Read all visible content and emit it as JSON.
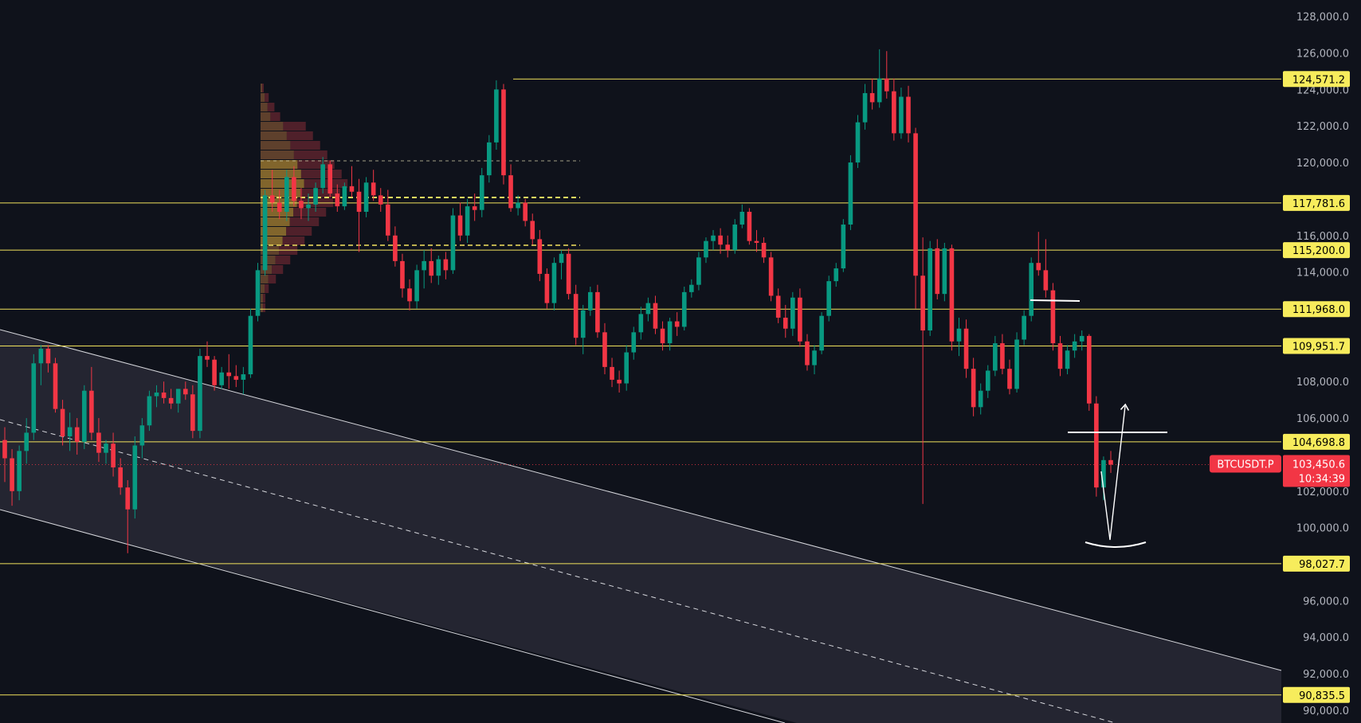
{
  "chart_data": {
    "type": "candlestick",
    "symbol": "BTCUSDT.P",
    "y_axis": {
      "min": 89300,
      "max": 128900,
      "ticks": [
        "90,000.0",
        "92,000.0",
        "94,000.0",
        "96,000.0",
        "100,000.0",
        "102,000.0",
        "106,000.0",
        "108,000.0",
        "114,000.0",
        "116,000.0",
        "120,000.0",
        "122,000.0",
        "124,000.0",
        "126,000.0",
        "128,000.0"
      ]
    },
    "levels": [
      {
        "value": 124571.2,
        "label": "124,571.2"
      },
      {
        "value": 117781.6,
        "label": "117,781.6"
      },
      {
        "value": 115200.0,
        "label": "115,200.0"
      },
      {
        "value": 111968.0,
        "label": "111,968.0"
      },
      {
        "value": 109951.7,
        "label": "109,951.7"
      },
      {
        "value": 104698.8,
        "label": "104,698.8"
      },
      {
        "value": 98027.7,
        "label": "98,027.7"
      },
      {
        "value": 90835.5,
        "label": "90,835.5"
      }
    ],
    "current_price": {
      "value": 103450.6,
      "label": "103,450.6",
      "countdown": "10:34:39"
    },
    "candles": [
      [
        104800,
        105500,
        102500,
        103800
      ],
      [
        103800,
        104300,
        101200,
        102000
      ],
      [
        102000,
        104500,
        101500,
        104200
      ],
      [
        104200,
        106000,
        103500,
        105200
      ],
      [
        105200,
        109500,
        104800,
        109000
      ],
      [
        109000,
        110000,
        107800,
        109800
      ],
      [
        109800,
        110000,
        108500,
        109000
      ],
      [
        109000,
        109300,
        106300,
        106500
      ],
      [
        106500,
        107000,
        104500,
        105000
      ],
      [
        105000,
        106300,
        104200,
        105500
      ],
      [
        105500,
        106000,
        104000,
        104700
      ],
      [
        104700,
        107800,
        104300,
        107500
      ],
      [
        107500,
        108800,
        104800,
        105200
      ],
      [
        105200,
        106000,
        103600,
        104100
      ],
      [
        104100,
        104800,
        103500,
        104600
      ],
      [
        104600,
        105200,
        102800,
        103300
      ],
      [
        103300,
        103800,
        101800,
        102200
      ],
      [
        102200,
        102600,
        98600,
        101000
      ],
      [
        101000,
        105000,
        100500,
        104500
      ],
      [
        104500,
        106000,
        103800,
        105600
      ],
      [
        105600,
        107500,
        105300,
        107200
      ],
      [
        107200,
        107800,
        106600,
        107400
      ],
      [
        107400,
        108000,
        106800,
        107100
      ],
      [
        107100,
        107600,
        106500,
        106800
      ],
      [
        106800,
        107600,
        106300,
        107600
      ],
      [
        107600,
        108000,
        107000,
        107300
      ],
      [
        107300,
        107800,
        104900,
        105300
      ],
      [
        105300,
        109800,
        104900,
        109400
      ],
      [
        109400,
        110200,
        108800,
        109200
      ],
      [
        109200,
        109400,
        107500,
        107800
      ],
      [
        107800,
        108800,
        107600,
        108500
      ],
      [
        108500,
        109500,
        107600,
        108300
      ],
      [
        108300,
        108900,
        107700,
        108100
      ],
      [
        108100,
        108800,
        107300,
        108400
      ],
      [
        108400,
        112000,
        108200,
        111600
      ],
      [
        111600,
        114500,
        111300,
        114100
      ],
      [
        114100,
        118500,
        113800,
        118200
      ],
      [
        118200,
        119600,
        117300,
        117800
      ],
      [
        117800,
        118500,
        116900,
        117300
      ],
      [
        117300,
        119600,
        116800,
        119200
      ],
      [
        119200,
        119800,
        117600,
        117900
      ],
      [
        117900,
        118600,
        116900,
        117500
      ],
      [
        117500,
        118300,
        116800,
        117700
      ],
      [
        117700,
        118900,
        117300,
        118600
      ],
      [
        118600,
        120300,
        118300,
        119900
      ],
      [
        119900,
        120100,
        118100,
        118300
      ],
      [
        118300,
        118800,
        117300,
        117600
      ],
      [
        117600,
        118900,
        117400,
        118700
      ],
      [
        118700,
        119800,
        118100,
        118400
      ],
      [
        118400,
        119100,
        115100,
        117300
      ],
      [
        117300,
        119200,
        117000,
        118900
      ],
      [
        118900,
        119600,
        117900,
        118200
      ],
      [
        118200,
        118600,
        117300,
        117700
      ],
      [
        117700,
        118500,
        115700,
        116000
      ],
      [
        116000,
        116500,
        114300,
        114600
      ],
      [
        114600,
        115000,
        112600,
        113100
      ],
      [
        113100,
        113600,
        111900,
        112400
      ],
      [
        112400,
        114400,
        112000,
        114100
      ],
      [
        114100,
        115200,
        113100,
        114600
      ],
      [
        114600,
        115300,
        113400,
        113800
      ],
      [
        113800,
        114900,
        113300,
        114700
      ],
      [
        114700,
        115100,
        113600,
        114100
      ],
      [
        114100,
        117500,
        113900,
        117100
      ],
      [
        117100,
        117800,
        115700,
        116000
      ],
      [
        116000,
        118000,
        115600,
        117600
      ],
      [
        117600,
        118300,
        116800,
        117400
      ],
      [
        117400,
        119700,
        117000,
        119300
      ],
      [
        119300,
        121500,
        118900,
        121100
      ],
      [
        121100,
        124500,
        120700,
        124000
      ],
      [
        124000,
        124300,
        118800,
        119300
      ],
      [
        119300,
        119900,
        117300,
        117500
      ],
      [
        117500,
        118200,
        117100,
        117800
      ],
      [
        117800,
        118000,
        116500,
        116800
      ],
      [
        116800,
        117200,
        115500,
        115800
      ],
      [
        115800,
        116300,
        113500,
        113900
      ],
      [
        113900,
        114200,
        112000,
        112300
      ],
      [
        112300,
        114800,
        111900,
        114500
      ],
      [
        114500,
        115200,
        113600,
        115000
      ],
      [
        115000,
        115300,
        112500,
        112800
      ],
      [
        112800,
        113300,
        110000,
        110400
      ],
      [
        110400,
        112200,
        109500,
        111900
      ],
      [
        111900,
        113200,
        111600,
        112900
      ],
      [
        112900,
        113300,
        110400,
        110700
      ],
      [
        110700,
        111200,
        108400,
        108800
      ],
      [
        108800,
        109300,
        107700,
        108100
      ],
      [
        108100,
        108600,
        107400,
        107900
      ],
      [
        107900,
        110000,
        107500,
        109600
      ],
      [
        109600,
        111000,
        109200,
        110700
      ],
      [
        110700,
        112100,
        110300,
        111700
      ],
      [
        111700,
        112600,
        111300,
        112300
      ],
      [
        112300,
        112700,
        110600,
        110900
      ],
      [
        110900,
        111300,
        109700,
        110100
      ],
      [
        110100,
        111500,
        109700,
        111300
      ],
      [
        111300,
        111800,
        110500,
        111000
      ],
      [
        111000,
        113200,
        110800,
        112900
      ],
      [
        112900,
        113600,
        112600,
        113300
      ],
      [
        113300,
        115100,
        113000,
        114800
      ],
      [
        114800,
        115900,
        114500,
        115700
      ],
      [
        115700,
        116300,
        115200,
        116000
      ],
      [
        116000,
        116400,
        115000,
        115500
      ],
      [
        115500,
        116000,
        114800,
        115200
      ],
      [
        115200,
        116900,
        115000,
        116600
      ],
      [
        116600,
        117700,
        116400,
        117300
      ],
      [
        117300,
        117500,
        115500,
        115700
      ],
      [
        115700,
        116300,
        115100,
        115600
      ],
      [
        115600,
        115900,
        114500,
        114800
      ],
      [
        114800,
        115100,
        112400,
        112700
      ],
      [
        112700,
        113100,
        111200,
        111500
      ],
      [
        111500,
        112200,
        110400,
        110900
      ],
      [
        110900,
        112900,
        110500,
        112600
      ],
      [
        112600,
        113100,
        109900,
        110200
      ],
      [
        110200,
        110600,
        108600,
        108900
      ],
      [
        108900,
        110000,
        108400,
        109700
      ],
      [
        109700,
        111800,
        109500,
        111600
      ],
      [
        111600,
        113800,
        111300,
        113500
      ],
      [
        113500,
        114500,
        113200,
        114200
      ],
      [
        114200,
        116900,
        114000,
        116600
      ],
      [
        116600,
        120400,
        116300,
        120000
      ],
      [
        120000,
        122600,
        119700,
        122200
      ],
      [
        122200,
        124300,
        121800,
        123800
      ],
      [
        123800,
        124600,
        122900,
        123300
      ],
      [
        123300,
        126200,
        123000,
        124600
      ],
      [
        124600,
        126100,
        123500,
        123900
      ],
      [
        123900,
        124600,
        121200,
        121600
      ],
      [
        121600,
        124100,
        121300,
        123600
      ],
      [
        123600,
        124200,
        121100,
        121600
      ],
      [
        121600,
        121900,
        112000,
        113800
      ],
      [
        113800,
        115900,
        101300,
        110800
      ],
      [
        110800,
        115700,
        110500,
        115300
      ],
      [
        115300,
        115800,
        112500,
        112800
      ],
      [
        112800,
        115600,
        112400,
        115300
      ],
      [
        115300,
        115500,
        109700,
        110200
      ],
      [
        110200,
        111500,
        109400,
        110900
      ],
      [
        110900,
        111400,
        108200,
        108700
      ],
      [
        108700,
        109300,
        106100,
        106600
      ],
      [
        106600,
        107900,
        106200,
        107500
      ],
      [
        107500,
        108900,
        107100,
        108600
      ],
      [
        108600,
        110500,
        108300,
        110100
      ],
      [
        110100,
        110600,
        108400,
        108700
      ],
      [
        108700,
        109200,
        107300,
        107600
      ],
      [
        107600,
        110700,
        107400,
        110300
      ],
      [
        110300,
        111900,
        110000,
        111600
      ],
      [
        111600,
        114800,
        111300,
        114500
      ],
      [
        114500,
        116200,
        113800,
        114100
      ],
      [
        114100,
        115800,
        112600,
        113000
      ],
      [
        113000,
        113400,
        109700,
        110100
      ],
      [
        110100,
        110500,
        108300,
        108700
      ],
      [
        108700,
        110000,
        108400,
        109700
      ],
      [
        109700,
        110600,
        109300,
        110200
      ],
      [
        110200,
        110800,
        109700,
        110500
      ],
      [
        110500,
        110600,
        106400,
        106800
      ],
      [
        106800,
        107200,
        101700,
        102200
      ],
      [
        102200,
        103900,
        101500,
        103700
      ],
      [
        103700,
        104200,
        103000,
        103450
      ]
    ]
  }
}
